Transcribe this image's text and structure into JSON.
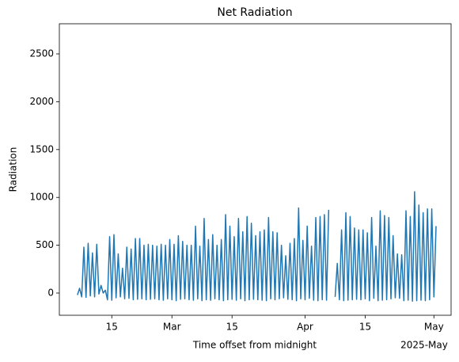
{
  "chart_data": {
    "type": "line",
    "title": "Net Radiation",
    "x_label": "Time offset from midnight",
    "y_label": "Radiation",
    "x_offset_label": "2025-May",
    "x": [
      "2025-02-07T00:00",
      "2025-02-07T12:00",
      "2025-02-08T00:00",
      "2025-02-08T12:00",
      "2025-02-09T00:00",
      "2025-02-09T12:00",
      "2025-02-10T00:00",
      "2025-02-10T12:00",
      "2025-02-11T00:00",
      "2025-02-11T12:00",
      "2025-02-12T00:00",
      "2025-02-12T12:00",
      "2025-02-13T00:00",
      "2025-02-13T12:00",
      "2025-02-14T00:00",
      "2025-02-14T12:00",
      "2025-02-15T00:00",
      "2025-02-15T12:00",
      "2025-02-16T00:00",
      "2025-02-16T12:00",
      "2025-02-17T00:00",
      "2025-02-17T12:00",
      "2025-02-18T00:00",
      "2025-02-18T12:00",
      "2025-02-19T00:00",
      "2025-02-19T12:00",
      "2025-02-20T00:00",
      "2025-02-20T12:00",
      "2025-02-21T00:00",
      "2025-02-21T12:00",
      "2025-02-22T00:00",
      "2025-02-22T12:00",
      "2025-02-23T00:00",
      "2025-02-23T12:00",
      "2025-02-24T00:00",
      "2025-02-24T12:00",
      "2025-02-25T00:00",
      "2025-02-25T12:00",
      "2025-02-26T00:00",
      "2025-02-26T12:00",
      "2025-02-27T00:00",
      "2025-02-27T12:00",
      "2025-02-28T00:00",
      "2025-02-28T12:00",
      "2025-03-01T00:00",
      "2025-03-01T12:00",
      "2025-03-02T00:00",
      "2025-03-02T12:00",
      "2025-03-03T00:00",
      "2025-03-03T12:00",
      "2025-03-04T00:00",
      "2025-03-04T12:00",
      "2025-03-05T00:00",
      "2025-03-05T12:00",
      "2025-03-06T00:00",
      "2025-03-06T12:00",
      "2025-03-07T00:00",
      "2025-03-07T12:00",
      "2025-03-08T00:00",
      "2025-03-08T12:00",
      "2025-03-09T00:00",
      "2025-03-09T12:00",
      "2025-03-10T00:00",
      "2025-03-10T12:00",
      "2025-03-11T00:00",
      "2025-03-11T12:00",
      "2025-03-12T00:00",
      "2025-03-12T12:00",
      "2025-03-13T00:00",
      "2025-03-13T12:00",
      "2025-03-14T00:00",
      "2025-03-14T12:00",
      "2025-03-15T00:00",
      "2025-03-15T12:00",
      "2025-03-16T00:00",
      "2025-03-16T12:00",
      "2025-03-17T00:00",
      "2025-03-17T12:00",
      "2025-03-18T00:00",
      "2025-03-18T12:00",
      "2025-03-19T00:00",
      "2025-03-19T12:00",
      "2025-03-20T00:00",
      "2025-03-20T12:00",
      "2025-03-21T00:00",
      "2025-03-21T12:00",
      "2025-03-22T00:00",
      "2025-03-22T12:00",
      "2025-03-23T00:00",
      "2025-03-23T12:00",
      "2025-03-24T00:00",
      "2025-03-24T12:00",
      "2025-03-25T00:00",
      "2025-03-25T12:00",
      "2025-03-26T00:00",
      "2025-03-26T12:00",
      "2025-03-27T00:00",
      "2025-03-27T12:00",
      "2025-03-28T00:00",
      "2025-03-28T12:00",
      "2025-03-29T00:00",
      "2025-03-29T12:00",
      "2025-03-30T00:00",
      "2025-03-30T12:00",
      "2025-03-31T00:00",
      "2025-03-31T12:00",
      "2025-04-01T00:00",
      "2025-04-01T12:00",
      "2025-04-02T00:00",
      "2025-04-02T12:00",
      "2025-04-03T00:00",
      "2025-04-03T12:00",
      "2025-04-04T00:00",
      "2025-04-04T12:00",
      "2025-04-05T00:00",
      "2025-04-05T12:00",
      "2025-04-06T00:00",
      "2025-04-06T12:00",
      "2025-04-07T00:00",
      "2025-04-07T12:00",
      "2025-04-08T00:00",
      "2025-04-08T12:00",
      "2025-04-09T00:00",
      "2025-04-09T12:00",
      "2025-04-10T00:00",
      "2025-04-10T12:00",
      "2025-04-11T00:00",
      "2025-04-11T12:00",
      "2025-04-12T00:00",
      "2025-04-12T12:00",
      "2025-04-13T00:00",
      "2025-04-13T12:00",
      "2025-04-14T00:00",
      "2025-04-14T12:00",
      "2025-04-15T00:00",
      "2025-04-15T12:00",
      "2025-04-16T00:00",
      "2025-04-16T12:00",
      "2025-04-17T00:00",
      "2025-04-17T12:00",
      "2025-04-18T00:00",
      "2025-04-18T12:00",
      "2025-04-19T00:00",
      "2025-04-19T12:00",
      "2025-04-20T00:00",
      "2025-04-20T12:00",
      "2025-04-21T00:00",
      "2025-04-21T12:00",
      "2025-04-22T00:00",
      "2025-04-22T12:00",
      "2025-04-23T00:00",
      "2025-04-23T12:00",
      "2025-04-24T00:00",
      "2025-04-24T12:00",
      "2025-04-25T00:00",
      "2025-04-25T12:00",
      "2025-04-26T00:00",
      "2025-04-26T12:00",
      "2025-04-27T00:00",
      "2025-04-27T12:00",
      "2025-04-28T00:00",
      "2025-04-28T12:00",
      "2025-04-29T00:00",
      "2025-04-29T12:00",
      "2025-04-30T00:00",
      "2025-04-30T12:00",
      "2025-05-01T00:00",
      "2025-05-01T12:00"
    ],
    "series": [
      {
        "name": "Net Radiation",
        "color": "#1f77b4",
        "values": [
          -20,
          50,
          -40,
          480,
          -45,
          520,
          -30,
          420,
          -40,
          510,
          -10,
          80,
          0,
          30,
          -70,
          590,
          -75,
          610,
          -50,
          410,
          -40,
          260,
          -60,
          480,
          -55,
          460,
          -70,
          570,
          -65,
          570,
          -60,
          500,
          -70,
          510,
          -65,
          500,
          -60,
          490,
          -70,
          510,
          -75,
          500,
          -60,
          560,
          -70,
          510,
          -80,
          600,
          -65,
          540,
          -60,
          500,
          -70,
          500,
          -75,
          700,
          -60,
          490,
          -80,
          780,
          -70,
          560,
          -75,
          610,
          -60,
          500,
          -70,
          560,
          -80,
          820,
          -70,
          700,
          -65,
          590,
          -75,
          780,
          -60,
          640,
          -80,
          800,
          -70,
          730,
          -65,
          600,
          -70,
          640,
          -75,
          660,
          -80,
          790,
          -60,
          640,
          -70,
          630,
          -60,
          500,
          -50,
          390,
          -65,
          520,
          -70,
          570,
          -80,
          890,
          -60,
          550,
          -70,
          700,
          -55,
          490,
          -75,
          790,
          -80,
          800,
          -70,
          820,
          -75,
          870,
          null,
          null,
          -40,
          310,
          -70,
          660,
          -80,
          840,
          -75,
          800,
          -70,
          680,
          -65,
          660,
          -70,
          660,
          -60,
          630,
          -80,
          790,
          -55,
          490,
          -80,
          860,
          -75,
          810,
          -70,
          790,
          -60,
          600,
          -50,
          410,
          -55,
          400,
          -80,
          860,
          -75,
          800,
          -85,
          1060,
          -80,
          920,
          -75,
          840,
          -80,
          880,
          -70,
          880,
          -40,
          700
        ]
      }
    ],
    "xlim": [
      "2025-02-02T19:00",
      "2025-05-05T00:00"
    ],
    "xticks": [
      {
        "value": "2025-02-15T00:00",
        "label": "15"
      },
      {
        "value": "2025-03-01T00:00",
        "label": "Mar"
      },
      {
        "value": "2025-03-15T00:00",
        "label": "15"
      },
      {
        "value": "2025-04-01T00:00",
        "label": "Apr"
      },
      {
        "value": "2025-04-15T00:00",
        "label": "15"
      },
      {
        "value": "2025-05-01T00:00",
        "label": "May"
      }
    ],
    "ylim": [
      -232,
      2815
    ],
    "yticks": [
      0,
      500,
      1000,
      1500,
      2000,
      2500
    ],
    "grid": false
  }
}
